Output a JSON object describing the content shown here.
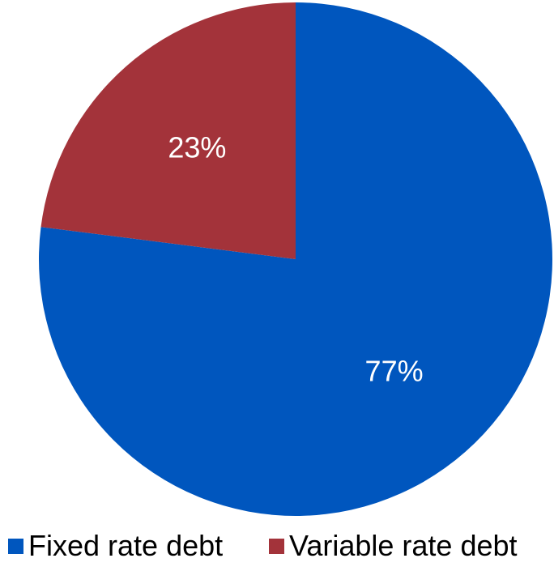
{
  "chart_data": {
    "type": "pie",
    "title": "",
    "slices": [
      {
        "name": "Fixed rate debt",
        "value": 77,
        "label": "77%",
        "color": "#0056BE"
      },
      {
        "name": "Variable rate debt",
        "value": 23,
        "label": "23%",
        "color": "#A3333A"
      }
    ],
    "start_angle_deg": 0,
    "direction": "clockwise",
    "legend_position": "bottom"
  }
}
